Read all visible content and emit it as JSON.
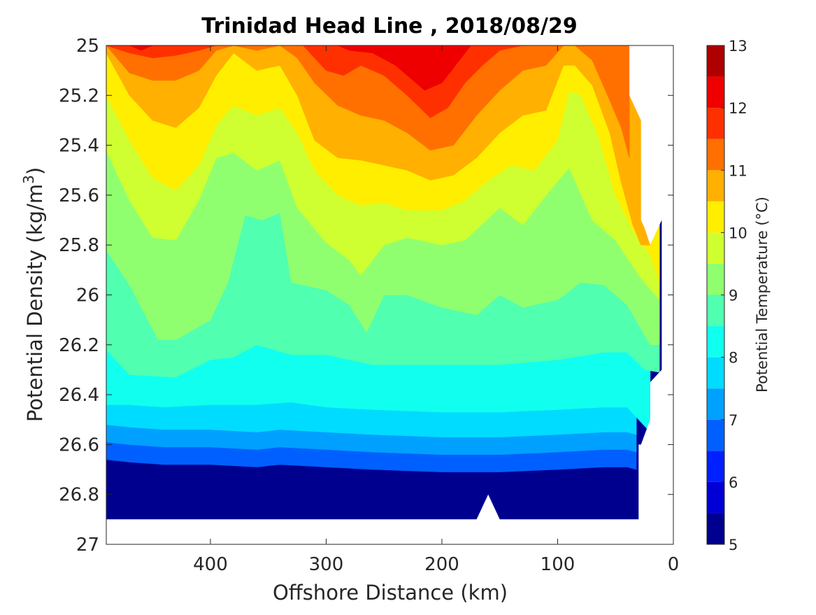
{
  "chart_data": {
    "type": "heatmap",
    "subtype": "filled-contour",
    "title": "Trinidad Head Line , 2018/08/29",
    "xlabel": "Offshore Distance (km)",
    "ylabel_main": "Potential Density (kg/m",
    "ylabel_sup": "3",
    "ylabel_tail": ")",
    "xlim": [
      490,
      0
    ],
    "xdir": "reverse",
    "ylim": [
      25,
      27
    ],
    "ydir": "reverse",
    "x_ticks": [
      400,
      300,
      200,
      100,
      0
    ],
    "y_ticks": [
      25,
      25.2,
      25.4,
      25.6,
      25.8,
      26,
      26.2,
      26.4,
      26.6,
      26.8,
      27
    ],
    "y_tick_labels": [
      "25",
      "25.2",
      "25.4",
      "25.6",
      "25.8",
      "26",
      "26.2",
      "26.4",
      "26.6",
      "26.8",
      "27"
    ],
    "x_tick_labels": [
      "400",
      "300",
      "200",
      "100",
      "0"
    ],
    "colorbar": {
      "label": "Potential Temperature (°C)",
      "ticks": [
        5,
        6,
        7,
        8,
        9,
        10,
        11,
        12,
        13
      ],
      "tick_labels": [
        "5",
        "6",
        "7",
        "8",
        "9",
        "10",
        "11",
        "12",
        "13"
      ],
      "levels": [
        5,
        5.5,
        6,
        6.5,
        7,
        7.5,
        8,
        8.5,
        9,
        9.5,
        10,
        10.5,
        11,
        11.5,
        12,
        12.5,
        13
      ],
      "colors": [
        "#00008f",
        "#0000d6",
        "#0020ff",
        "#0060ff",
        "#00a0ff",
        "#00dcff",
        "#10ffef",
        "#50ffaf",
        "#90ff6f",
        "#cfff30",
        "#ffee00",
        "#ffb000",
        "#ff7000",
        "#ff3000",
        "#ee0000",
        "#af0000"
      ]
    },
    "isotherms": [
      {
        "level": 6.5,
        "points": [
          [
            490,
            26.66
          ],
          [
            470,
            26.67
          ],
          [
            440,
            26.68
          ],
          [
            400,
            26.68
          ],
          [
            360,
            26.69
          ],
          [
            340,
            26.68
          ],
          [
            300,
            26.69
          ],
          [
            260,
            26.7
          ],
          [
            200,
            26.71
          ],
          [
            150,
            26.71
          ],
          [
            100,
            26.7
          ],
          [
            60,
            26.69
          ],
          [
            40,
            26.69
          ],
          [
            32,
            26.7
          ]
        ]
      },
      {
        "level": 7.0,
        "points": [
          [
            490,
            26.59
          ],
          [
            470,
            26.6
          ],
          [
            440,
            26.61
          ],
          [
            400,
            26.61
          ],
          [
            360,
            26.62
          ],
          [
            340,
            26.61
          ],
          [
            300,
            26.62
          ],
          [
            260,
            26.63
          ],
          [
            200,
            26.64
          ],
          [
            150,
            26.64
          ],
          [
            100,
            26.63
          ],
          [
            60,
            26.62
          ],
          [
            40,
            26.62
          ],
          [
            32,
            26.63
          ]
        ]
      },
      {
        "level": 7.5,
        "points": [
          [
            490,
            26.52
          ],
          [
            470,
            26.53
          ],
          [
            440,
            26.54
          ],
          [
            400,
            26.54
          ],
          [
            360,
            26.55
          ],
          [
            340,
            26.54
          ],
          [
            300,
            26.55
          ],
          [
            260,
            26.56
          ],
          [
            200,
            26.57
          ],
          [
            150,
            26.57
          ],
          [
            100,
            26.56
          ],
          [
            60,
            26.55
          ],
          [
            40,
            26.55
          ],
          [
            32,
            26.56
          ]
        ]
      },
      {
        "level": 8.0,
        "points": [
          [
            490,
            26.44
          ],
          [
            470,
            26.44
          ],
          [
            440,
            26.45
          ],
          [
            400,
            26.44
          ],
          [
            360,
            26.44
          ],
          [
            330,
            26.43
          ],
          [
            300,
            26.45
          ],
          [
            260,
            26.46
          ],
          [
            200,
            26.47
          ],
          [
            150,
            26.47
          ],
          [
            100,
            26.46
          ],
          [
            60,
            26.45
          ],
          [
            40,
            26.45
          ],
          [
            26,
            26.52
          ],
          [
            20,
            26.55
          ]
        ]
      },
      {
        "level": 8.5,
        "points": [
          [
            490,
            26.22
          ],
          [
            470,
            26.32
          ],
          [
            430,
            26.33
          ],
          [
            400,
            26.26
          ],
          [
            380,
            26.25
          ],
          [
            360,
            26.2
          ],
          [
            330,
            26.24
          ],
          [
            300,
            26.24
          ],
          [
            260,
            26.28
          ],
          [
            200,
            26.28
          ],
          [
            150,
            26.28
          ],
          [
            100,
            26.26
          ],
          [
            60,
            26.23
          ],
          [
            40,
            26.23
          ],
          [
            25,
            26.3
          ],
          [
            12,
            26.31
          ]
        ]
      },
      {
        "level": 9.0,
        "points": [
          [
            490,
            25.82
          ],
          [
            470,
            25.96
          ],
          [
            445,
            26.18
          ],
          [
            430,
            26.18
          ],
          [
            400,
            26.1
          ],
          [
            385,
            25.95
          ],
          [
            370,
            25.68
          ],
          [
            355,
            25.7
          ],
          [
            340,
            25.67
          ],
          [
            330,
            25.95
          ],
          [
            300,
            25.98
          ],
          [
            280,
            26.04
          ],
          [
            265,
            26.15
          ],
          [
            250,
            26.0
          ],
          [
            230,
            26.0
          ],
          [
            200,
            26.05
          ],
          [
            170,
            26.08
          ],
          [
            150,
            26.0
          ],
          [
            130,
            26.05
          ],
          [
            100,
            26.02
          ],
          [
            80,
            25.95
          ],
          [
            60,
            25.96
          ],
          [
            40,
            26.04
          ],
          [
            20,
            26.2
          ],
          [
            12,
            26.2
          ]
        ]
      },
      {
        "level": 9.5,
        "points": [
          [
            490,
            25.42
          ],
          [
            470,
            25.62
          ],
          [
            450,
            25.77
          ],
          [
            430,
            25.78
          ],
          [
            410,
            25.62
          ],
          [
            395,
            25.45
          ],
          [
            380,
            25.43
          ],
          [
            360,
            25.5
          ],
          [
            340,
            25.46
          ],
          [
            325,
            25.65
          ],
          [
            300,
            25.79
          ],
          [
            280,
            25.86
          ],
          [
            270,
            25.92
          ],
          [
            260,
            25.86
          ],
          [
            250,
            25.8
          ],
          [
            230,
            25.77
          ],
          [
            200,
            25.8
          ],
          [
            180,
            25.78
          ],
          [
            150,
            25.65
          ],
          [
            130,
            25.72
          ],
          [
            110,
            25.6
          ],
          [
            90,
            25.49
          ],
          [
            70,
            25.7
          ],
          [
            50,
            25.78
          ],
          [
            30,
            25.92
          ],
          [
            12,
            26.02
          ]
        ]
      },
      {
        "level": 10.0,
        "points": [
          [
            490,
            25.2
          ],
          [
            470,
            25.38
          ],
          [
            450,
            25.53
          ],
          [
            430,
            25.58
          ],
          [
            410,
            25.48
          ],
          [
            395,
            25.32
          ],
          [
            380,
            25.24
          ],
          [
            360,
            25.28
          ],
          [
            340,
            25.25
          ],
          [
            325,
            25.35
          ],
          [
            310,
            25.5
          ],
          [
            290,
            25.6
          ],
          [
            270,
            25.64
          ],
          [
            250,
            25.63
          ],
          [
            230,
            25.66
          ],
          [
            200,
            25.66
          ],
          [
            180,
            25.62
          ],
          [
            160,
            25.54
          ],
          [
            140,
            25.48
          ],
          [
            120,
            25.5
          ],
          [
            100,
            25.38
          ],
          [
            90,
            25.18
          ],
          [
            80,
            25.2
          ],
          [
            65,
            25.36
          ],
          [
            50,
            25.6
          ],
          [
            35,
            25.74
          ],
          [
            20,
            25.84
          ],
          [
            12,
            25.95
          ]
        ]
      },
      {
        "level": 10.5,
        "points": [
          [
            490,
            25.03
          ],
          [
            470,
            25.2
          ],
          [
            450,
            25.3
          ],
          [
            430,
            25.33
          ],
          [
            410,
            25.25
          ],
          [
            395,
            25.12
          ],
          [
            380,
            25.03
          ],
          [
            360,
            25.1
          ],
          [
            340,
            25.08
          ],
          [
            325,
            25.2
          ],
          [
            310,
            25.38
          ],
          [
            290,
            25.45
          ],
          [
            270,
            25.46
          ],
          [
            250,
            25.48
          ],
          [
            230,
            25.5
          ],
          [
            210,
            25.54
          ],
          [
            190,
            25.52
          ],
          [
            170,
            25.45
          ],
          [
            150,
            25.35
          ],
          [
            130,
            25.28
          ],
          [
            110,
            25.26
          ],
          [
            95,
            25.08
          ],
          [
            85,
            25.08
          ],
          [
            70,
            25.16
          ],
          [
            55,
            25.35
          ],
          [
            45,
            25.55
          ],
          [
            35,
            25.72
          ],
          [
            28,
            25.8
          ],
          [
            20,
            25.8
          ]
        ]
      },
      {
        "level": 11.0,
        "points": [
          [
            490,
            25.0
          ],
          [
            470,
            25.11
          ],
          [
            450,
            25.14
          ],
          [
            430,
            25.14
          ],
          [
            410,
            25.1
          ],
          [
            395,
            25.02
          ],
          [
            380,
            25.0
          ],
          [
            360,
            25.02
          ],
          [
            340,
            25.0
          ],
          [
            325,
            25.05
          ],
          [
            310,
            25.15
          ],
          [
            290,
            25.24
          ],
          [
            270,
            25.28
          ],
          [
            250,
            25.3
          ],
          [
            230,
            25.35
          ],
          [
            210,
            25.42
          ],
          [
            190,
            25.4
          ],
          [
            170,
            25.28
          ],
          [
            150,
            25.18
          ],
          [
            130,
            25.1
          ],
          [
            110,
            25.08
          ],
          [
            95,
            25.0
          ],
          [
            85,
            25.0
          ],
          [
            70,
            25.06
          ],
          [
            55,
            25.22
          ],
          [
            45,
            25.33
          ],
          [
            38,
            25.45
          ]
        ]
      },
      {
        "level": 11.5,
        "points": [
          [
            490,
            25.0
          ],
          [
            470,
            25.03
          ],
          [
            450,
            25.05
          ],
          [
            430,
            25.04
          ],
          [
            410,
            25.02
          ],
          [
            395,
            25.0
          ],
          [
            320,
            25.0
          ],
          [
            300,
            25.1
          ],
          [
            285,
            25.12
          ],
          [
            270,
            25.08
          ],
          [
            250,
            25.12
          ],
          [
            230,
            25.2
          ],
          [
            210,
            25.29
          ],
          [
            195,
            25.25
          ],
          [
            180,
            25.15
          ],
          [
            165,
            25.08
          ],
          [
            150,
            25.02
          ],
          [
            130,
            25.0
          ]
        ]
      },
      {
        "level": 12.0,
        "points": [
          [
            470,
            25.0
          ],
          [
            460,
            25.02
          ],
          [
            450,
            25.0
          ],
          [
            290,
            25.0
          ],
          [
            280,
            25.02
          ],
          [
            260,
            25.03
          ],
          [
            240,
            25.08
          ],
          [
            215,
            25.18
          ],
          [
            200,
            25.15
          ],
          [
            185,
            25.06
          ],
          [
            175,
            25.0
          ]
        ]
      }
    ],
    "boundary": {
      "right_edge": [
        [
          38,
          25.0
        ],
        [
          38,
          25.2
        ],
        [
          28,
          25.3
        ],
        [
          28,
          25.7
        ],
        [
          25,
          25.73
        ],
        [
          20,
          25.8
        ],
        [
          10,
          25.7
        ],
        [
          10,
          26.3
        ],
        [
          20,
          26.35
        ],
        [
          20,
          26.5
        ],
        [
          28,
          26.6
        ],
        [
          30,
          26.65
        ]
      ],
      "bottom_edge": [
        [
          30,
          26.9
        ],
        [
          150,
          26.9
        ],
        [
          160,
          26.8
        ],
        [
          170,
          26.9
        ],
        [
          490,
          26.9
        ]
      ]
    }
  }
}
